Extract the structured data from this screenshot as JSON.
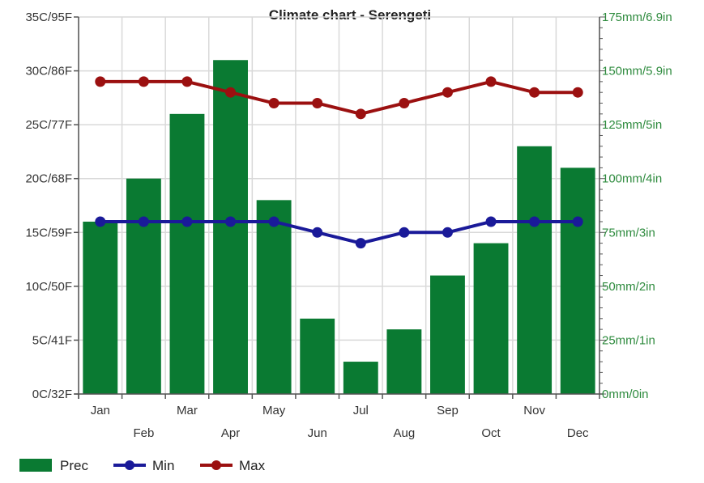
{
  "chart_data": {
    "type": "bar",
    "title": "Climate chart - Serengeti",
    "categories": [
      "Jan",
      "Feb",
      "Mar",
      "Apr",
      "May",
      "Jun",
      "Jul",
      "Aug",
      "Sep",
      "Oct",
      "Nov",
      "Dec"
    ],
    "series": [
      {
        "name": "Prec",
        "type": "bar",
        "axis": "right",
        "color": "#0a7a32",
        "values": [
          80,
          100,
          130,
          155,
          90,
          35,
          15,
          30,
          55,
          70,
          115,
          105
        ]
      },
      {
        "name": "Min",
        "type": "line",
        "axis": "left",
        "color": "#1a1a99",
        "values": [
          16,
          16,
          16,
          16,
          16,
          15,
          14,
          15,
          15,
          16,
          16,
          16
        ]
      },
      {
        "name": "Max",
        "type": "line",
        "axis": "left",
        "color": "#9b1010",
        "values": [
          29,
          29,
          29,
          28,
          27,
          27,
          26,
          27,
          28,
          29,
          28,
          28
        ]
      }
    ],
    "left_axis": {
      "ylim": [
        0,
        35
      ],
      "tick_values": [
        0,
        5,
        10,
        15,
        20,
        25,
        30,
        35
      ],
      "tick_labels": [
        "0C/32F",
        "5C/41F",
        "10C/50F",
        "15C/59F",
        "20C/68F",
        "25C/77F",
        "30C/86F",
        "35C/95F"
      ]
    },
    "right_axis": {
      "ylim": [
        0,
        175
      ],
      "tick_values": [
        0,
        25,
        50,
        75,
        100,
        125,
        150,
        175
      ],
      "tick_labels": [
        "0mm/0in",
        "25mm/1in",
        "50mm/2in",
        "75mm/3in",
        "100mm/4in",
        "125mm/5in",
        "150mm/5.9in",
        "175mm/6.9in"
      ]
    },
    "grid": true,
    "legend_position": "bottom-left"
  }
}
